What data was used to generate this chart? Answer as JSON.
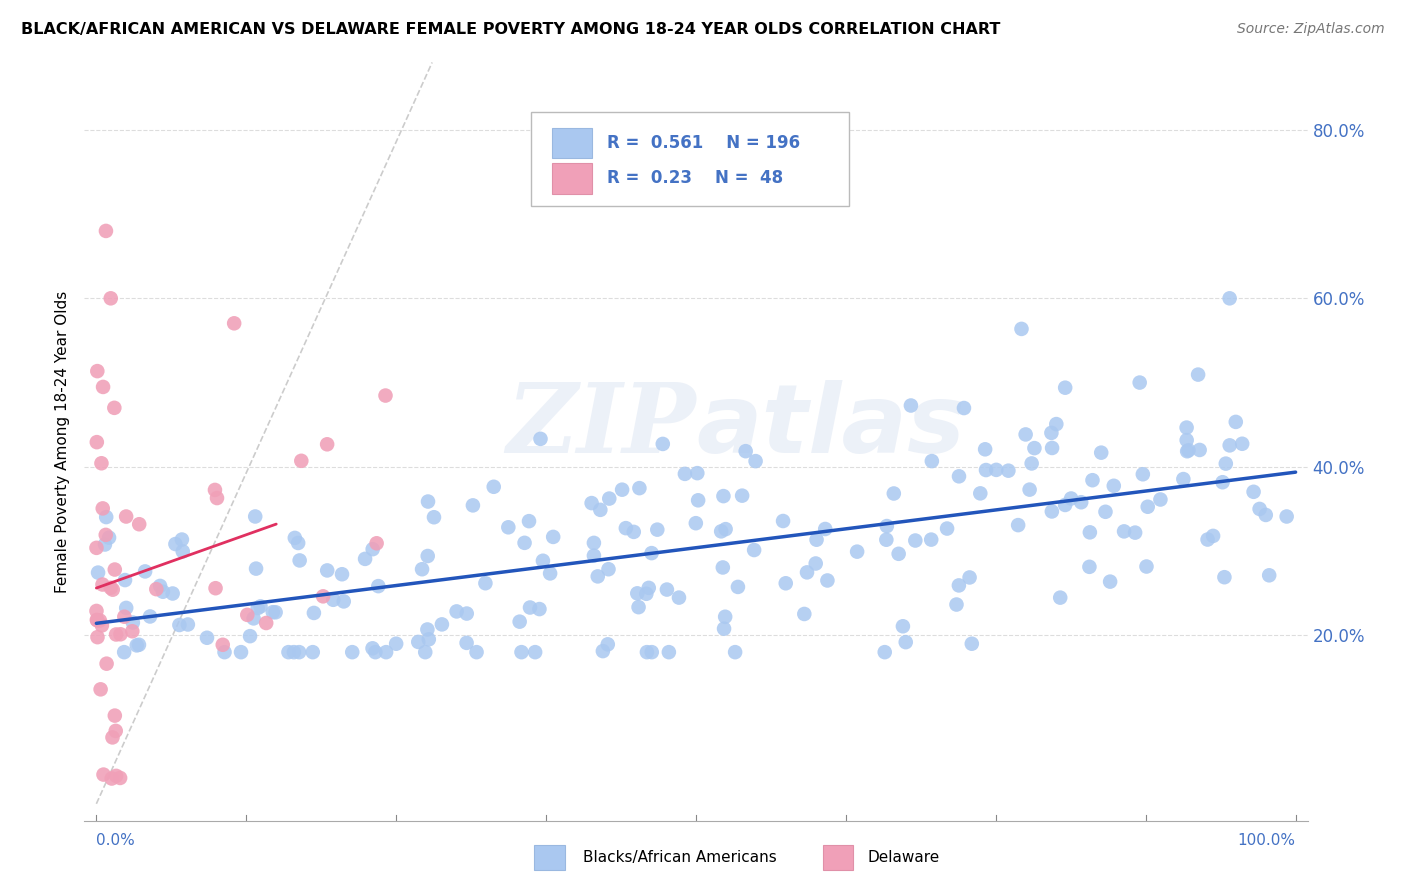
{
  "title": "BLACK/AFRICAN AMERICAN VS DELAWARE FEMALE POVERTY AMONG 18-24 YEAR OLDS CORRELATION CHART",
  "source": "Source: ZipAtlas.com",
  "ylabel": "Female Poverty Among 18-24 Year Olds",
  "R_blue": 0.561,
  "N_blue": 196,
  "R_pink": 0.23,
  "N_pink": 48,
  "blue_color": "#aac8f0",
  "blue_line_color": "#2255bb",
  "pink_color": "#f0a0b8",
  "pink_line_color": "#e03060",
  "ref_line_color": "#cccccc",
  "watermark": "ZIPatlas",
  "bg_color": "#ffffff",
  "grid_color": "#dddddd",
  "ytick_color": "#4472c4",
  "legend_label_blue": "Blacks/African Americans",
  "legend_label_pink": "Delaware"
}
